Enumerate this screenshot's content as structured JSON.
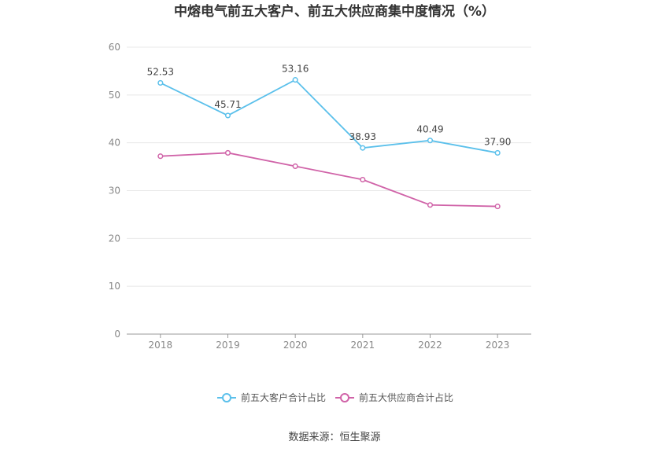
{
  "chart_data": {
    "type": "line",
    "title": "中熔电气前五大客户、前五大供应商集中度情况（%）",
    "categories": [
      "2018",
      "2019",
      "2020",
      "2021",
      "2022",
      "2023"
    ],
    "ylim": [
      0,
      60
    ],
    "yticks": [
      "0",
      "10",
      "20",
      "30",
      "40",
      "50",
      "60"
    ],
    "grid": true,
    "legend_position": "bottom",
    "series": [
      {
        "name": "前五大客户合计占比",
        "color": "#5bc0eb",
        "values": [
          52.53,
          45.71,
          53.16,
          38.93,
          40.49,
          37.9
        ],
        "labels": [
          "52.53",
          "45.71",
          "53.16",
          "38.93",
          "40.49",
          "37.90"
        ]
      },
      {
        "name": "前五大供应商合计占比",
        "color": "#d063a8",
        "values": [
          37.2,
          37.9,
          35.1,
          32.3,
          27.0,
          26.7
        ],
        "labels": []
      }
    ],
    "source": "数据来源：恒生聚源"
  }
}
